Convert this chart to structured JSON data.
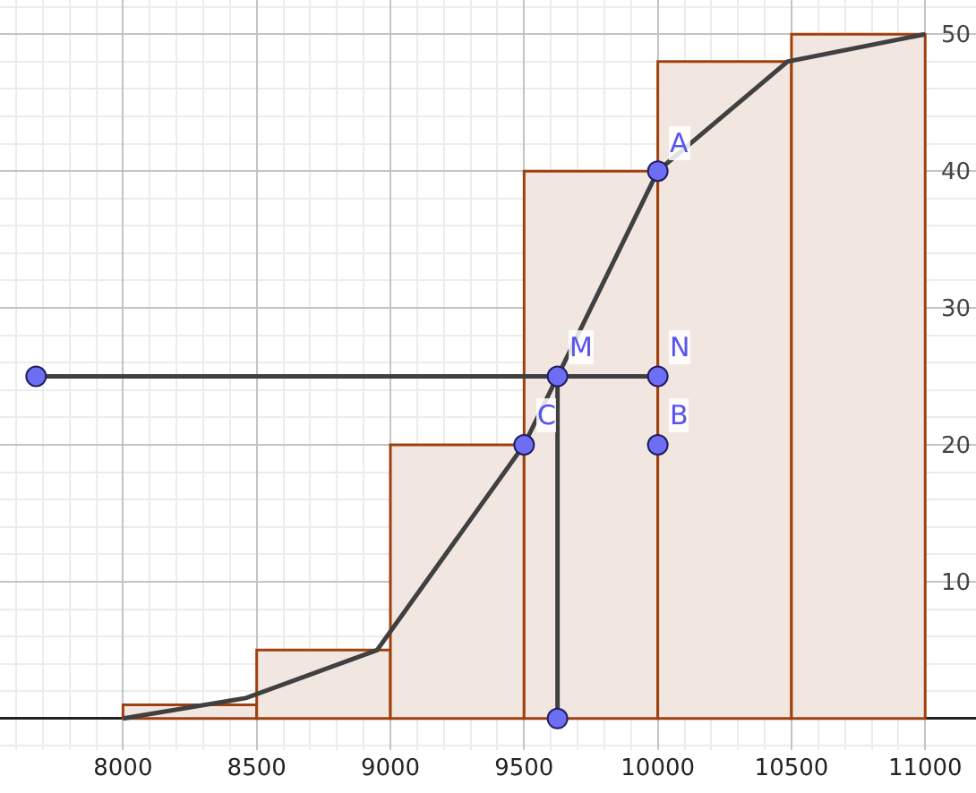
{
  "chart_data": {
    "type": "histogram",
    "bins": [
      8000,
      8500,
      9000,
      9500,
      10000,
      10500,
      11000
    ],
    "values": [
      1,
      5,
      20,
      40,
      48,
      50
    ],
    "color": "#f2e6e0",
    "series": [
      {
        "type": "line",
        "color": "#404040",
        "x": [
          8000,
          8460,
          8950,
          9500,
          10000,
          10485,
          11000
        ],
        "values": [
          0,
          1.5,
          5,
          20,
          40,
          48,
          50
        ]
      },
      {
        "type": "line",
        "color": "#404040",
        "x": [
          7675,
          10000
        ],
        "values": [
          25,
          25
        ]
      },
      {
        "type": "line",
        "color": "#404040",
        "x": [
          9625,
          9625
        ],
        "values": [
          25,
          0
        ]
      },
      {
        "type": "scatter",
        "color": "#6e6ef5",
        "marker": "circle",
        "x": [
          10000,
          10000,
          9500,
          9625,
          10000,
          9625,
          7675
        ],
        "values": [
          40,
          20,
          20,
          25,
          25,
          0,
          25
        ]
      }
    ],
    "annotations": [
      {
        "text": "A",
        "x": 10000,
        "y": 40
      },
      {
        "text": "B",
        "x": 10000,
        "y": 20
      },
      {
        "text": "C",
        "x": 9500,
        "y": 20
      },
      {
        "text": "M",
        "x": 9625,
        "y": 25
      },
      {
        "text": "N",
        "x": 10000,
        "y": 25
      }
    ],
    "xlim": [
      7540,
      11190
    ],
    "ylim": [
      -2.3,
      52.5
    ],
    "xticks": [
      8000,
      8500,
      9000,
      9500,
      10000,
      10500,
      11000
    ],
    "yticks": [
      10,
      20,
      30,
      40,
      50
    ],
    "grid": true,
    "line_style": "solid"
  }
}
